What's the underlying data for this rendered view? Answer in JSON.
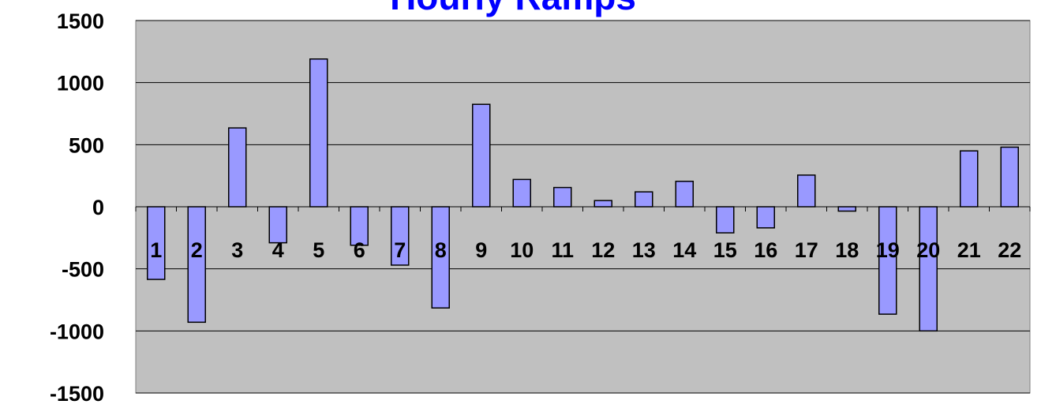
{
  "chart_data": {
    "type": "bar",
    "title": "Hourly Ramps",
    "categories": [
      "1",
      "2",
      "3",
      "4",
      "5",
      "6",
      "7",
      "8",
      "9",
      "10",
      "11",
      "12",
      "13",
      "14",
      "15",
      "16",
      "17",
      "18",
      "19",
      "20",
      "21",
      "22"
    ],
    "values": [
      -585,
      -930,
      635,
      -290,
      1190,
      -310,
      -470,
      -815,
      825,
      220,
      155,
      50,
      120,
      205,
      -210,
      -170,
      255,
      -35,
      -865,
      -1000,
      450,
      480
    ],
    "color": "#9999ff",
    "ylim": [
      -1500,
      1500
    ],
    "yticks": [
      -1500,
      -1000,
      -500,
      0,
      500,
      1000,
      1500
    ],
    "grid": true
  }
}
